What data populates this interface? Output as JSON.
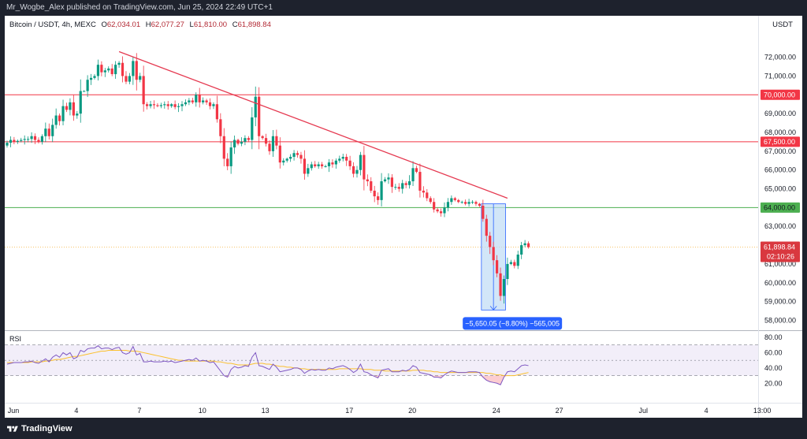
{
  "header": {
    "publisher_line": "Mr_Wogbe_Alex published on TradingView.com, Jun 25, 2024 22:49 UTC+1"
  },
  "legend": {
    "symbol": "Bitcoin / USDT, 4h, MEXC",
    "open_label": "O",
    "open": "62,034.01",
    "high_label": "H",
    "high": "62,077.27",
    "low_label": "L",
    "low": "61,810.00",
    "close_label": "C",
    "close": "61,898.84"
  },
  "currency": "USDT",
  "footer": {
    "brand": "TradingView"
  },
  "colors": {
    "up": "#089981",
    "down": "#f23645",
    "trendline": "#e53950",
    "resistance_line": "#f23645",
    "support_line": "#4caf50",
    "price_line": "#f7c56b",
    "measure_fill": "#bfdcf5",
    "measure_stroke": "#2962ff",
    "rsi_line": "#7e57c2",
    "rsi_ma": "#fbc02d"
  },
  "chart_data": [
    {
      "type": "candlestick",
      "timeframe": "4h",
      "ylim": [
        57600,
        73200
      ],
      "yticks": [
        "58,000.00",
        "59,000.00",
        "60,000.00",
        "61,000.00",
        "62,000.00",
        "63,000.00",
        "64,000.00",
        "65,000.00",
        "66,000.00",
        "67,000.00",
        "68,000.00",
        "69,000.00",
        "70,000.00",
        "71,000.00",
        "72,000.00"
      ],
      "ytick_values": [
        58000,
        59000,
        60000,
        61000,
        62000,
        63000,
        64000,
        65000,
        66000,
        67000,
        68000,
        69000,
        70000,
        71000,
        72000
      ],
      "xlabels": [
        {
          "label": "Jun",
          "bar": 0
        },
        {
          "label": "4",
          "bar": 18
        },
        {
          "label": "7",
          "bar": 36
        },
        {
          "label": "10",
          "bar": 54
        },
        {
          "label": "13",
          "bar": 72
        },
        {
          "label": "17",
          "bar": 96
        },
        {
          "label": "20",
          "bar": 114
        },
        {
          "label": "24",
          "bar": 138
        },
        {
          "label": "27",
          "bar": 156
        },
        {
          "label": "Jul",
          "bar": 180
        },
        {
          "label": "4",
          "bar": 198
        },
        {
          "label": "13:00",
          "bar": 214
        }
      ],
      "horizontal_lines": [
        {
          "value": 70000,
          "label": "70,000.00",
          "color": "#f23645"
        },
        {
          "value": 67500,
          "label": "67,500.00",
          "color": "#f23645"
        },
        {
          "value": 64000,
          "label": "64,000.00",
          "color": "#4caf50"
        }
      ],
      "current_price": {
        "value": 61898.84,
        "label": "61,898.84",
        "countdown": "02:10:26"
      },
      "trendline": {
        "from": {
          "bar": 32,
          "price": 72300
        },
        "to": {
          "bar": 143,
          "price": 64500
        }
      },
      "measure": {
        "from_bar": 136,
        "to_bar": 142,
        "high": 64200,
        "low": 58550,
        "label": "−5,650.05 (−8.80%) −565,005"
      },
      "closes": [
        67450,
        67600,
        67500,
        67550,
        67600,
        67650,
        67650,
        67800,
        67600,
        67500,
        67800,
        68200,
        67800,
        68400,
        68900,
        68600,
        69400,
        69200,
        69600,
        68900,
        69000,
        70200,
        70200,
        70800,
        70900,
        71000,
        71600,
        71200,
        71300,
        71400,
        71100,
        71600,
        71700,
        71000,
        70700,
        71000,
        71800,
        70800,
        71000,
        69500,
        69400,
        69500,
        69450,
        69400,
        69450,
        69500,
        69400,
        69500,
        69350,
        69400,
        69500,
        69600,
        69700,
        69600,
        70000,
        69600,
        69700,
        69600,
        69400,
        69500,
        68700,
        67800,
        66600,
        66200,
        67200,
        67600,
        67400,
        67500,
        67700,
        67600,
        68800,
        69900,
        67800,
        67700,
        67400,
        67000,
        67800,
        67300,
        66400,
        66500,
        66600,
        66700,
        66900,
        66800,
        66600,
        65800,
        66100,
        66300,
        66200,
        66300,
        66200,
        66200,
        66400,
        66300,
        66500,
        66600,
        66700,
        66500,
        66200,
        65800,
        66000,
        66800,
        65500,
        65400,
        64900,
        64600,
        64400,
        65400,
        65500,
        65600,
        65100,
        65100,
        65000,
        65300,
        65200,
        65400,
        66100,
        65900,
        64900,
        64800,
        64500,
        64300,
        63900,
        63800,
        63700,
        64000,
        64300,
        64500,
        64400,
        64300,
        64300,
        64200,
        64300,
        64300,
        64200,
        64100,
        63400,
        62500,
        61900,
        61200,
        60500,
        59300,
        60200,
        61000,
        61100,
        60900,
        61500,
        62000,
        62100,
        61900
      ],
      "rsi": {
        "ylim": [
          10,
          80
        ],
        "yticks": [
          "20.00",
          "40.00",
          "60.00",
          "80.00"
        ],
        "ytick_values": [
          20,
          40,
          60,
          80
        ],
        "bands": [
          30,
          50,
          70
        ],
        "values": [
          45,
          46,
          47,
          47,
          47,
          48,
          48,
          49,
          47,
          46,
          49,
          52,
          48,
          54,
          57,
          54,
          60,
          57,
          60,
          52,
          54,
          63,
          61,
          65,
          66,
          66,
          69,
          65,
          66,
          66,
          64,
          66,
          67,
          60,
          58,
          60,
          68,
          57,
          59,
          48,
          48,
          49,
          48,
          48,
          48,
          49,
          48,
          49,
          47,
          48,
          49,
          50,
          51,
          50,
          53,
          49,
          50,
          49,
          47,
          48,
          42,
          36,
          30,
          28,
          38,
          42,
          40,
          41,
          43,
          42,
          54,
          60,
          43,
          42,
          40,
          38,
          45,
          41,
          35,
          36,
          37,
          38,
          40,
          40,
          38,
          33,
          36,
          38,
          37,
          38,
          37,
          37,
          40,
          39,
          41,
          42,
          43,
          41,
          38,
          34,
          37,
          45,
          35,
          34,
          31,
          29,
          27,
          37,
          38,
          39,
          35,
          35,
          35,
          37,
          36,
          38,
          43,
          41,
          34,
          33,
          32,
          31,
          28,
          28,
          27,
          31,
          34,
          36,
          35,
          34,
          34,
          34,
          35,
          35,
          35,
          34,
          28,
          24,
          22,
          21,
          20,
          18,
          28,
          35,
          36,
          35,
          39,
          43,
          44,
          43
        ],
        "ma": [
          47,
          47,
          47,
          47,
          47,
          47,
          47,
          48,
          48,
          48,
          48,
          49,
          49,
          50,
          51,
          51,
          52,
          53,
          54,
          55,
          55,
          56,
          57,
          58,
          59,
          60,
          61,
          62,
          62,
          63,
          63,
          63,
          63,
          63,
          63,
          62,
          62,
          62,
          61,
          60,
          59,
          58,
          57,
          56,
          55,
          54,
          53,
          52,
          51,
          50,
          50,
          49,
          49,
          49,
          49,
          49,
          49,
          49,
          49,
          49,
          48,
          48,
          47,
          46,
          46,
          45,
          44,
          44,
          44,
          44,
          45,
          46,
          46,
          46,
          45,
          45,
          44,
          43,
          42,
          42,
          41,
          41,
          40,
          40,
          39,
          39,
          38,
          38,
          38,
          38,
          38,
          38,
          38,
          38,
          38,
          39,
          39,
          39,
          39,
          39,
          39,
          39,
          38,
          38,
          38,
          37,
          37,
          37,
          36,
          36,
          36,
          36,
          36,
          36,
          36,
          36,
          37,
          37,
          37,
          37,
          36,
          36,
          35,
          35,
          34,
          34,
          34,
          34,
          34,
          34,
          34,
          34,
          34,
          34,
          34,
          34,
          34,
          33,
          33,
          32,
          31,
          31,
          30,
          30,
          30,
          30,
          31,
          32,
          33,
          34
        ]
      }
    }
  ]
}
